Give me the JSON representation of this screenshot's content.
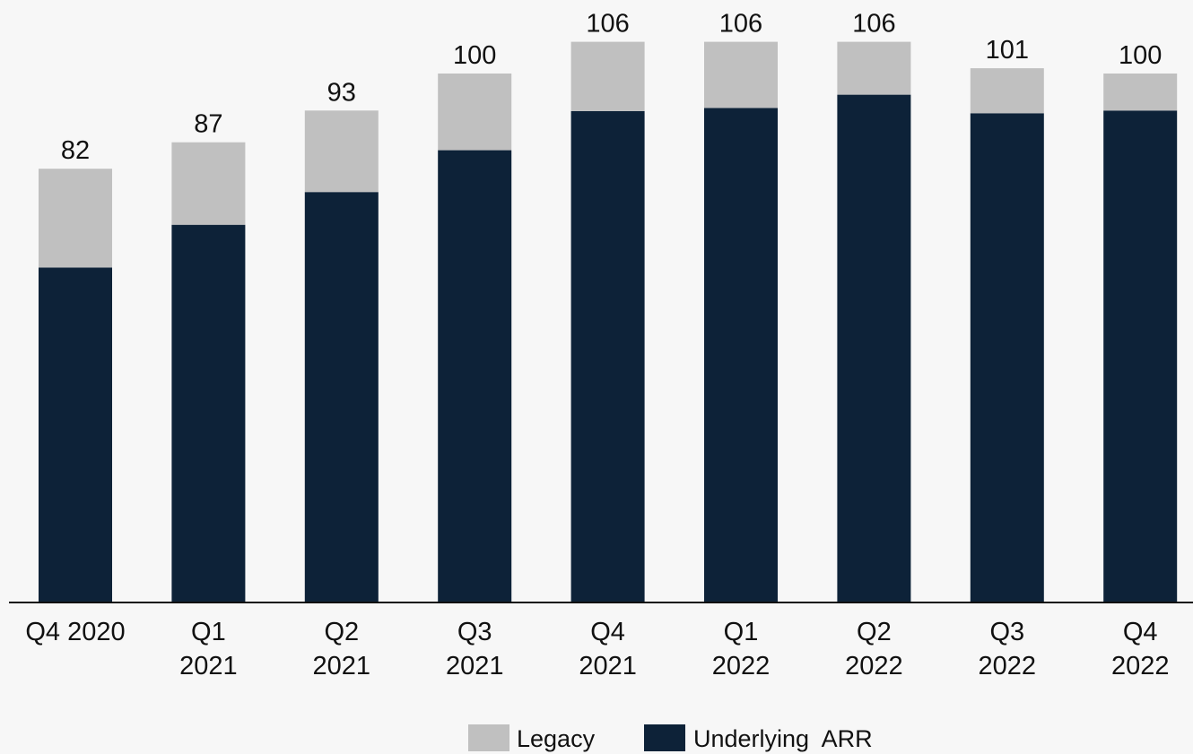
{
  "chart_data": {
    "type": "bar",
    "stacked": true,
    "categories": [
      [
        "Q4 2020"
      ],
      [
        "Q1",
        "2021"
      ],
      [
        "Q2",
        "2021"
      ],
      [
        "Q3",
        "2021"
      ],
      [
        "Q4",
        "2021"
      ],
      [
        "Q1",
        "2022"
      ],
      [
        "Q2",
        "2022"
      ],
      [
        "Q3",
        "2022"
      ],
      [
        "Q4",
        "2022"
      ]
    ],
    "series": [
      {
        "name": "Underlying  ARR",
        "color": "#0d2238",
        "values": [
          63.3,
          71.4,
          77.6,
          85.5,
          92.9,
          93.5,
          96.0,
          92.5,
          93.0
        ]
      },
      {
        "name": "Legacy",
        "color": "#c0c0c0",
        "values": [
          18.7,
          15.6,
          15.4,
          14.5,
          13.1,
          12.5,
          10.0,
          8.5,
          7.0
        ]
      }
    ],
    "totals": [
      "82",
      "87",
      "93",
      "100",
      "106",
      "106",
      "106",
      "101",
      "100"
    ],
    "ylim": [
      0,
      106
    ],
    "legend": {
      "position": "bottom-center",
      "order": [
        "Legacy",
        "Underlying  ARR"
      ]
    },
    "grid": false,
    "title": "",
    "xlabel": "",
    "ylabel": ""
  }
}
